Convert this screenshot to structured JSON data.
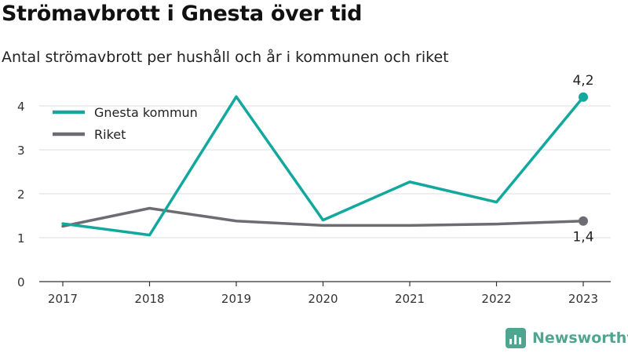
{
  "page": {
    "title": "Strömavbrott i Gnesta över tid",
    "subtitle": "Antal strömavbrott per hushåll och år i kommunen och riket"
  },
  "brand": {
    "name": "Newsworthy",
    "icon": "newsworthy-logo-icon",
    "color": "#4fa590"
  },
  "chart_data": {
    "type": "line",
    "categories": [
      "2017",
      "2018",
      "2019",
      "2020",
      "2021",
      "2022",
      "2023"
    ],
    "yticks": [
      "0",
      "1",
      "2",
      "3",
      "4"
    ],
    "ylim": [
      0,
      4.5
    ],
    "grid": true,
    "legend_position": "top-left",
    "series": [
      {
        "name": "Gnesta kommun",
        "color": "#13a89e",
        "values": [
          1.32,
          1.06,
          4.21,
          1.4,
          2.27,
          1.81,
          4.2
        ],
        "end_label": "4,2"
      },
      {
        "name": "Riket",
        "color": "#6d6c72",
        "values": [
          1.26,
          1.67,
          1.38,
          1.28,
          1.28,
          1.31,
          1.38
        ],
        "end_label": "1,4"
      }
    ]
  }
}
